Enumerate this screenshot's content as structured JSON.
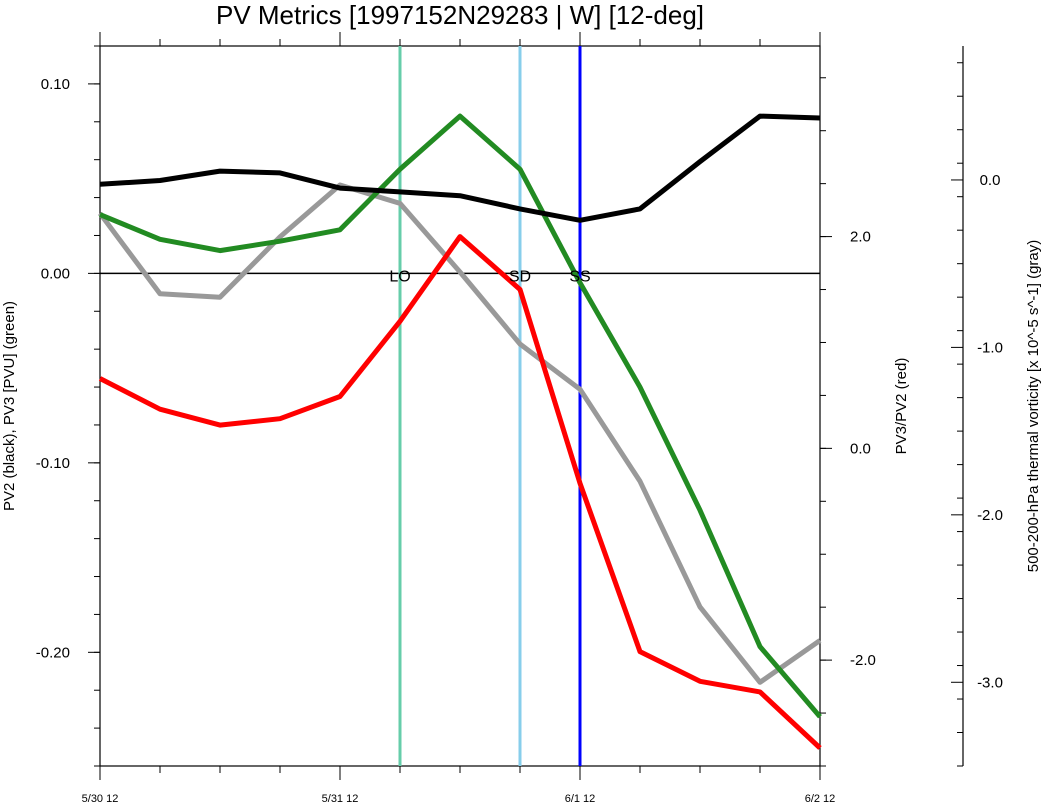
{
  "chart_data": {
    "type": "line",
    "title": "PV Metrics [1997152N29283 | W] [12-deg]",
    "x": [
      0,
      1,
      2,
      3,
      4,
      5,
      6,
      7,
      8,
      9,
      10,
      11,
      12
    ],
    "xtick_labels": [
      "5/30 12",
      "5/31 12",
      "6/1 12",
      "6/2 12"
    ],
    "xtick_positions": [
      0,
      4,
      8,
      12
    ],
    "axes": {
      "left": {
        "label": "PV2 (black), PV3 [PVU] (green)",
        "ylim": [
          -0.26,
          0.12
        ],
        "ticks": [
          0.1,
          0.0,
          -0.1,
          -0.2
        ],
        "tick_labels": [
          "0.10",
          "0.00",
          "-0.10",
          "-0.20"
        ],
        "minor_step": 0.02
      },
      "right": {
        "label": "PV3/PV2 (red)",
        "ylim": [
          -3.0,
          3.8
        ],
        "ticks": [
          2.0,
          0.0,
          -2.0
        ],
        "tick_labels": [
          "2.0",
          "0.0",
          "-2.0"
        ],
        "minor_step": 0.5
      },
      "far_right": {
        "label": "500-200-hPa thermal vorticity [x 10^-5 s^-1] (gray)",
        "ylim": [
          -3.5,
          0.8
        ],
        "ticks": [
          0.0,
          -1.0,
          -2.0,
          -3.0
        ],
        "tick_labels": [
          "0.0",
          "-1.0",
          "-2.0",
          "-3.0"
        ],
        "minor_step": 0.2
      }
    },
    "zero_line": 0.0,
    "series": [
      {
        "name": "PV2",
        "axis": "left",
        "color": "#000000",
        "values": [
          0.047,
          0.049,
          0.054,
          0.053,
          0.045,
          0.043,
          0.041,
          0.034,
          0.028,
          0.034,
          0.059,
          0.083,
          0.082
        ]
      },
      {
        "name": "PV3",
        "axis": "left",
        "color": "#228B22",
        "values": [
          0.031,
          0.018,
          0.012,
          0.017,
          0.023,
          0.055,
          0.083,
          0.055,
          -0.005,
          -0.06,
          -0.125,
          -0.197,
          -0.234
        ]
      },
      {
        "name": "PV3/PV2",
        "axis": "right",
        "color": "#FF0000",
        "values": [
          0.66,
          0.37,
          0.22,
          0.28,
          0.49,
          1.2,
          2.0,
          1.5,
          -0.33,
          -1.92,
          -2.2,
          -2.3,
          -2.83
        ]
      },
      {
        "name": "500-200-hPa thermal vorticity",
        "axis": "far_right",
        "color": "#999999",
        "values": [
          -0.2,
          -0.68,
          -0.7,
          -0.34,
          -0.03,
          -0.14,
          -0.55,
          -0.98,
          -1.25,
          -1.8,
          -2.55,
          -3.0,
          -2.75
        ]
      }
    ],
    "events": [
      {
        "label": "LO",
        "x": 5.0,
        "color": "#66CDAA"
      },
      {
        "label": "SD",
        "x": 7.0,
        "color": "#87CEEB"
      },
      {
        "label": "SS",
        "x": 8.0,
        "color": "#0000FF"
      }
    ]
  }
}
